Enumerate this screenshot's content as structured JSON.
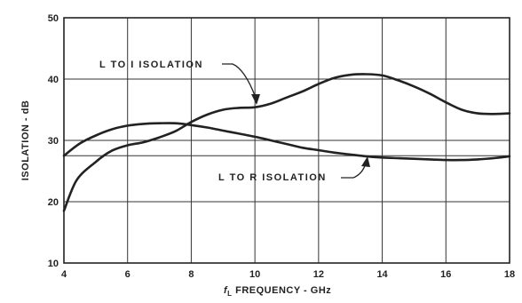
{
  "chart_data": {
    "type": "line",
    "xlabel": "f_L FREQUENCY - GHz",
    "xlabel_prefix": "f",
    "xlabel_sub": "L",
    "xlabel_rest": " FREQUENCY - GHz",
    "ylabel": "ISOLATION - dB",
    "xlim": [
      4,
      18
    ],
    "ylim": [
      10,
      50
    ],
    "xticks": [
      4,
      6,
      8,
      10,
      12,
      14,
      16,
      18
    ],
    "yticks": [
      10,
      20,
      30,
      40,
      50
    ],
    "xtick_labels": [
      "4",
      "6",
      "8",
      "10",
      "12",
      "14",
      "16",
      "18"
    ],
    "ytick_labels": [
      "10",
      "20",
      "30",
      "40",
      "50"
    ],
    "grid": true,
    "legend": "none",
    "series": [
      {
        "name": "L TO I ISOLATION",
        "x": [
          4,
          4.4,
          5,
          5.5,
          6,
          6.5,
          7,
          7.5,
          8,
          8.5,
          9,
          9.5,
          10,
          10.5,
          11,
          11.5,
          12,
          12.5,
          13,
          13.5,
          14,
          14.5,
          15,
          15.5,
          16,
          16.5,
          17,
          17.5,
          18
        ],
        "values": [
          18.5,
          23.5,
          26.5,
          28.3,
          29.2,
          29.7,
          30.5,
          31.5,
          33,
          34.2,
          35,
          35.3,
          35.4,
          36,
          37,
          38,
          39.2,
          40.2,
          40.7,
          40.8,
          40.6,
          39.8,
          38.8,
          37.6,
          36.2,
          35,
          34.4,
          34.3,
          34.4
        ]
      },
      {
        "name": "L TO R ISOLATION",
        "x": [
          4,
          4.5,
          5,
          5.5,
          6,
          6.5,
          7,
          7.5,
          8,
          8.5,
          9,
          9.5,
          10,
          10.5,
          11,
          11.5,
          12,
          12.5,
          13,
          13.5,
          14,
          14.5,
          15,
          15.5,
          16,
          16.5,
          17,
          17.5,
          18
        ],
        "values": [
          27.5,
          29.5,
          30.8,
          31.8,
          32.4,
          32.7,
          32.8,
          32.8,
          32.5,
          32.1,
          31.6,
          31.1,
          30.6,
          30,
          29.4,
          28.8,
          28.4,
          28,
          27.7,
          27.4,
          27.2,
          27.1,
          27,
          26.9,
          26.8,
          26.8,
          26.9,
          27.1,
          27.4
        ]
      }
    ],
    "annotations": [
      {
        "text": "L TO I ISOLATION",
        "points_to_series": 0
      },
      {
        "text": "L TO R ISOLATION",
        "points_to_series": 1
      }
    ]
  }
}
